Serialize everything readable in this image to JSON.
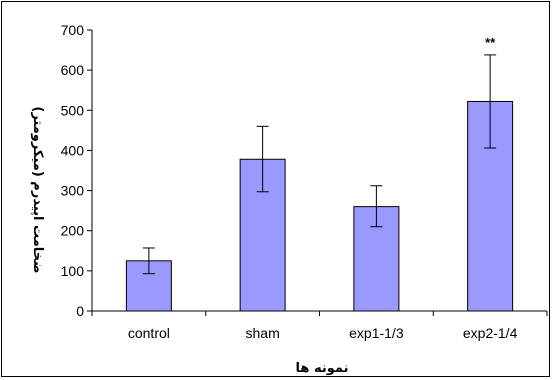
{
  "chart_data": {
    "type": "bar",
    "categories": [
      "control",
      "sham",
      "exp1-1/3",
      "exp2-1/4"
    ],
    "values": [
      125,
      378,
      260,
      522
    ],
    "error_upper": [
      157,
      460,
      312,
      638
    ],
    "error_lower": [
      93,
      297,
      210,
      406
    ],
    "annotations": [
      {
        "category": "exp2-1/4",
        "text": "**"
      }
    ],
    "xlabel": "نمونه ها",
    "ylabel": "ضخامت اپیدرم (میکرومتر)",
    "ylim": [
      0,
      700
    ],
    "yticks": [
      0,
      100,
      200,
      300,
      400,
      500,
      600,
      700
    ],
    "grid": false,
    "legend": "none",
    "bar_color": "#9999ff"
  }
}
